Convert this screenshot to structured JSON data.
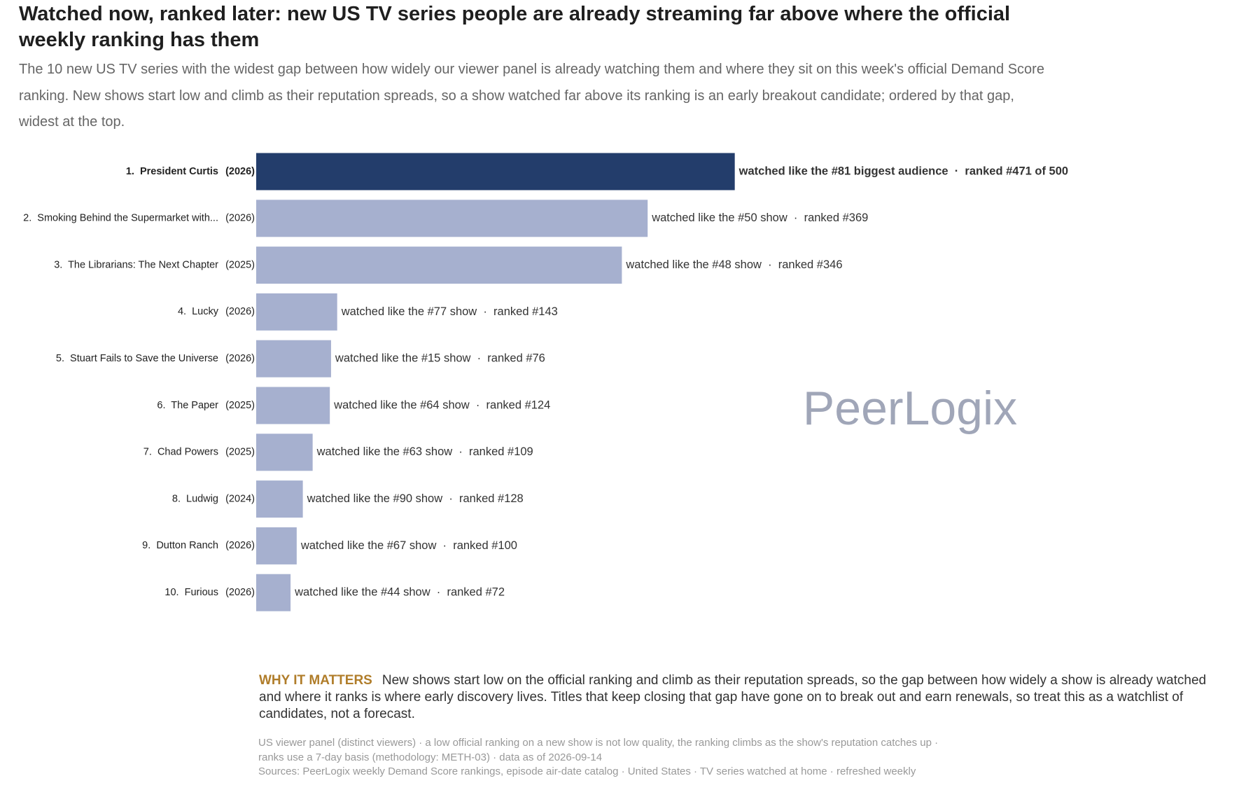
{
  "chart_data": {
    "type": "bar",
    "title": "Watched now, ranked later: new US TV series people are already streaming far above where the official weekly ranking has them",
    "subtitle": "The 10 new US TV series with the widest gap between how widely our viewer panel is already watching them and where they sit on this week's official Demand Score ranking. New shows start low and climb as their reputation spreads, so a show watched far above its ranking is an early breakout candidate; ordered by that gap, widest at the top.",
    "categories": [
      "1.  President Curtis",
      "2.  Smoking Behind the Supermarket with...",
      "3.  The Librarians: The Next Chapter",
      "4.  Lucky",
      "5.  Stuart Fails to Save the Universe",
      "6.  The Paper",
      "7.  Chad Powers",
      "8.  Ludwig",
      "9.  Dutton Ranch",
      "10.  Furious"
    ],
    "years": [
      "(2026)",
      "(2026)",
      "(2025)",
      "(2026)",
      "(2026)",
      "(2025)",
      "(2025)",
      "(2024)",
      "(2026)",
      "(2026)"
    ],
    "values": [
      390,
      319,
      298,
      66,
      61,
      60,
      46,
      38,
      33,
      28
    ],
    "colors": [
      "#233d6b",
      "#a6b0cf",
      "#a6b0cf",
      "#a6b0cf",
      "#a6b0cf",
      "#a6b0cf",
      "#a6b0cf",
      "#a6b0cf",
      "#a6b0cf",
      "#a6b0cf"
    ],
    "bar_labels": [
      "watched like the #81 biggest audience  ·  ranked #471 of 500",
      "watched like the #50 show  ·  ranked #369",
      "watched like the #48 show  ·  ranked #346",
      "watched like the #77 show  ·  ranked #143",
      "watched like the #15 show  ·  ranked #76",
      "watched like the #64 show  ·  ranked #124",
      "watched like the #63 show  ·  ranked #109",
      "watched like the #90 show  ·  ranked #128",
      "watched like the #67 show  ·  ranked #100",
      "watched like the #44 show  ·  ranked #72"
    ],
    "watermark": "PeerLogix",
    "note": {
      "label": "WHY IT MATTERS",
      "text": "New shows start low on the official ranking and climb as their reputation spreads, so the gap between how widely a show is already watched and where it ranks is where early discovery lives. Titles that keep closing that gap have gone on to break out and earn renewals, so treat this as a watchlist of candidates, not a forecast."
    },
    "footnote": "US viewer panel (distinct viewers) · a low official ranking on a new show is not low quality, the ranking climbs as the show's reputation catches up · ranks use a 7-day basis (methodology: METH-03) · data as of 2026-09-14",
    "sources": "Sources: PeerLogix weekly Demand Score rankings, episode air-date catalog · United States · TV series watched at home · refreshed weekly"
  }
}
